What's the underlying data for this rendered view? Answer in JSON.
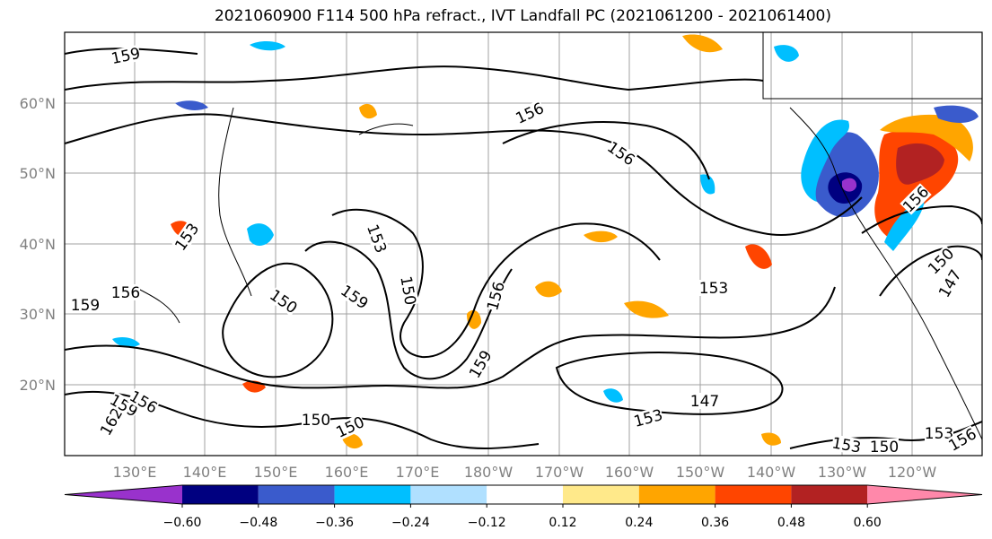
{
  "title": "2021060900 F114 500 hPa refract., IVT Landfall PC (2021061200 - 2021061400)",
  "map": {
    "lon_ticks": [
      "130°E",
      "140°E",
      "150°E",
      "160°E",
      "170°E",
      "180°W",
      "170°W",
      "160°W",
      "150°W",
      "140°W",
      "130°W",
      "120°W"
    ],
    "lat_ticks": [
      "60°N",
      "50°N",
      "40°N",
      "30°N",
      "20°N"
    ],
    "contour_labels": [
      {
        "text": "159"
      },
      {
        "text": "156"
      },
      {
        "text": "156"
      },
      {
        "text": "153"
      },
      {
        "text": "150"
      },
      {
        "text": "159"
      },
      {
        "text": "150"
      },
      {
        "text": "153"
      },
      {
        "text": "156"
      },
      {
        "text": "159"
      },
      {
        "text": "153"
      },
      {
        "text": "147"
      },
      {
        "text": "150"
      },
      {
        "text": "150"
      },
      {
        "text": "153"
      },
      {
        "text": "153"
      },
      {
        "text": "150"
      },
      {
        "text": "153"
      },
      {
        "text": "156"
      },
      {
        "text": "159"
      },
      {
        "text": "156"
      },
      {
        "text": "162"
      },
      {
        "text": "159"
      },
      {
        "text": "156"
      },
      {
        "text": "150"
      },
      {
        "text": "147"
      },
      {
        "text": "156"
      }
    ]
  },
  "colorbar": {
    "colors": [
      "#9932CC",
      "#000080",
      "#3A5BCC",
      "#00BFFF",
      "#B0E0FF",
      "#FFFFFF",
      "#FFE98A",
      "#FFA500",
      "#FF4500",
      "#B22222",
      "#FF88AA"
    ],
    "labels": [
      "−0.60",
      "−0.48",
      "−0.36",
      "−0.24",
      "−0.12",
      "0.12",
      "0.24",
      "0.36",
      "0.48",
      "0.60"
    ]
  }
}
